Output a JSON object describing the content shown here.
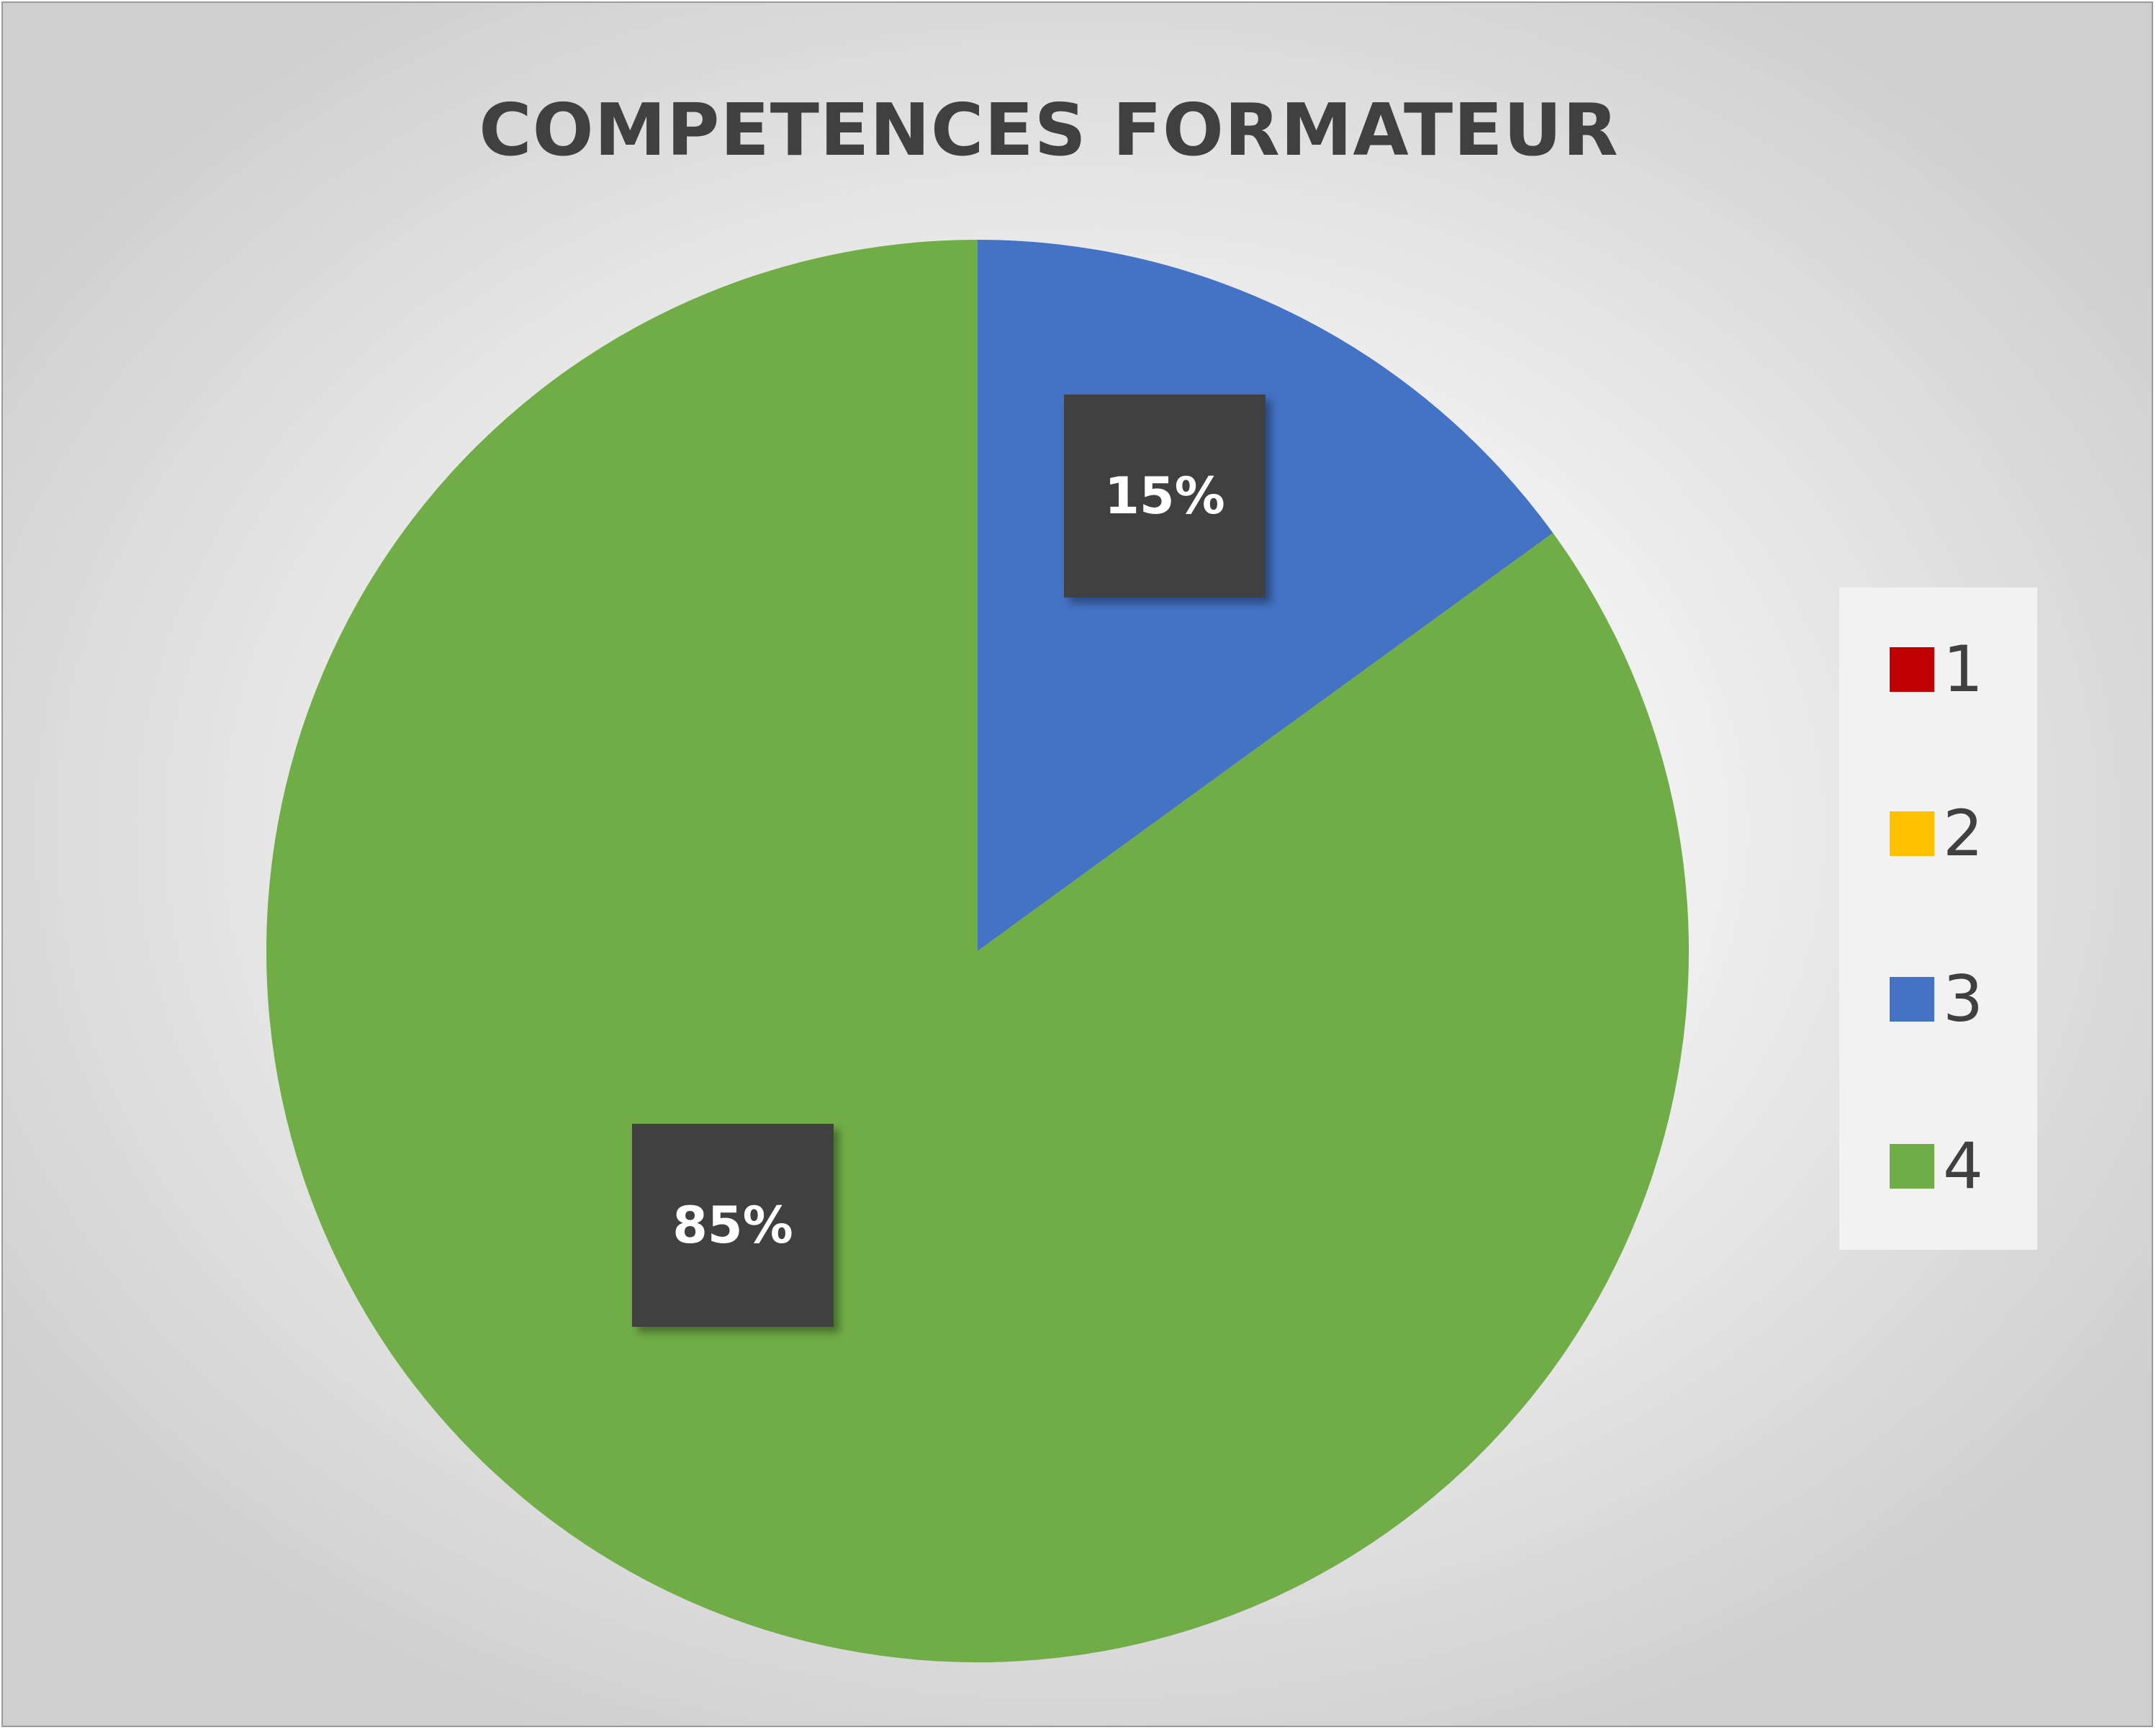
{
  "chart_data": {
    "type": "pie",
    "title": "COMPETENCES FORMATEUR",
    "categories": [
      "1",
      "2",
      "3",
      "4"
    ],
    "values": [
      0,
      0,
      15,
      85
    ],
    "data_labels": [
      "",
      "",
      "15%",
      "85%"
    ],
    "colors": [
      "#C00000",
      "#FFC000",
      "#4472C4",
      "#70AD47"
    ],
    "start_angle_deg": 0,
    "direction": "clockwise",
    "legend_position": "right"
  }
}
